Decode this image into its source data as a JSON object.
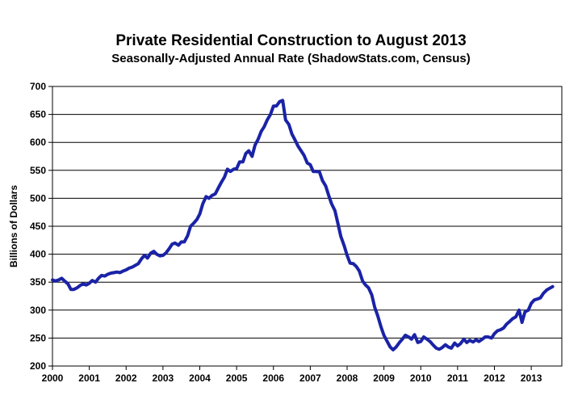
{
  "chart_data": {
    "type": "line",
    "title": "Private Residential Construction to August 2013",
    "subtitle": "Seasonally-Adjusted Annual Rate (ShadowStats.com, Census)",
    "xlabel": "",
    "ylabel": "Billions of Dollars",
    "xlim": [
      2000,
      2013.83
    ],
    "ylim": [
      200,
      700
    ],
    "x_ticks": [
      "2000",
      "2001",
      "2002",
      "2003",
      "2004",
      "2005",
      "2006",
      "2007",
      "2008",
      "2009",
      "2010",
      "2011",
      "2012",
      "2013"
    ],
    "y_ticks": [
      "200",
      "250",
      "300",
      "350",
      "400",
      "450",
      "500",
      "550",
      "600",
      "650",
      "700"
    ],
    "grid": "horizontal",
    "line_color": "#1a23a6",
    "series": [
      {
        "x": [
          2000.0,
          2000.08,
          2000.17,
          2000.25,
          2000.33,
          2000.42,
          2000.5,
          2000.58,
          2000.67,
          2000.75,
          2000.83,
          2000.92,
          2001.0,
          2001.08,
          2001.17,
          2001.25,
          2001.33,
          2001.42,
          2001.5,
          2001.58,
          2001.67,
          2001.75,
          2001.83,
          2001.92,
          2002.0,
          2002.08,
          2002.17,
          2002.25,
          2002.33,
          2002.42,
          2002.5,
          2002.58,
          2002.67,
          2002.75,
          2002.83,
          2002.92,
          2003.0,
          2003.08,
          2003.17,
          2003.25,
          2003.33,
          2003.42,
          2003.5,
          2003.58,
          2003.67,
          2003.75,
          2003.83,
          2003.92,
          2004.0,
          2004.08,
          2004.17,
          2004.25,
          2004.33,
          2004.42,
          2004.5,
          2004.58,
          2004.67,
          2004.75,
          2004.83,
          2004.92,
          2005.0,
          2005.08,
          2005.17,
          2005.25,
          2005.33,
          2005.42,
          2005.5,
          2005.58,
          2005.67,
          2005.75,
          2005.83,
          2005.92,
          2006.0,
          2006.08,
          2006.17,
          2006.25,
          2006.33,
          2006.42,
          2006.5,
          2006.58,
          2006.67,
          2006.75,
          2006.83,
          2006.92,
          2007.0,
          2007.08,
          2007.17,
          2007.25,
          2007.33,
          2007.42,
          2007.5,
          2007.58,
          2007.67,
          2007.75,
          2007.83,
          2007.92,
          2008.0,
          2008.08,
          2008.17,
          2008.25,
          2008.33,
          2008.42,
          2008.5,
          2008.58,
          2008.67,
          2008.75,
          2008.83,
          2008.92,
          2009.0,
          2009.08,
          2009.17,
          2009.25,
          2009.33,
          2009.42,
          2009.5,
          2009.58,
          2009.67,
          2009.75,
          2009.83,
          2009.92,
          2010.0,
          2010.08,
          2010.17,
          2010.25,
          2010.33,
          2010.42,
          2010.5,
          2010.58,
          2010.67,
          2010.75,
          2010.83,
          2010.92,
          2011.0,
          2011.08,
          2011.17,
          2011.25,
          2011.33,
          2011.42,
          2011.5,
          2011.58,
          2011.67,
          2011.75,
          2011.83,
          2011.92,
          2012.0,
          2012.08,
          2012.17,
          2012.25,
          2012.33,
          2012.42,
          2012.5,
          2012.58,
          2012.67,
          2012.75,
          2012.83,
          2012.92,
          2013.0,
          2013.08,
          2013.17,
          2013.25,
          2013.33,
          2013.42,
          2013.5,
          2013.58
        ],
        "y": [
          354,
          352,
          354,
          357,
          352,
          347,
          337,
          337,
          340,
          344,
          347,
          345,
          348,
          353,
          350,
          357,
          362,
          361,
          364,
          366,
          367,
          368,
          367,
          370,
          372,
          375,
          377,
          380,
          383,
          392,
          398,
          393,
          402,
          405,
          400,
          397,
          398,
          402,
          410,
          418,
          420,
          416,
          422,
          422,
          433,
          450,
          455,
          462,
          472,
          490,
          503,
          500,
          505,
          508,
          518,
          528,
          538,
          552,
          548,
          552,
          553,
          565,
          565,
          580,
          585,
          575,
          595,
          605,
          620,
          628,
          640,
          650,
          665,
          665,
          673,
          675,
          640,
          632,
          615,
          605,
          593,
          585,
          577,
          563,
          560,
          548,
          548,
          547,
          532,
          522,
          505,
          490,
          478,
          455,
          432,
          415,
          398,
          384,
          383,
          378,
          370,
          352,
          345,
          340,
          327,
          305,
          290,
          270,
          255,
          245,
          234,
          229,
          234,
          242,
          248,
          255,
          252,
          248,
          256,
          242,
          244,
          252,
          248,
          244,
          238,
          232,
          230,
          233,
          238,
          234,
          232,
          241,
          236,
          240,
          248,
          242,
          246,
          243,
          247,
          244,
          248,
          252,
          252,
          250,
          258,
          263,
          265,
          268,
          275,
          280,
          285,
          288,
          300,
          278,
          297,
          300,
          312,
          318,
          320,
          322,
          330,
          336,
          339,
          342
        ]
      }
    ]
  }
}
